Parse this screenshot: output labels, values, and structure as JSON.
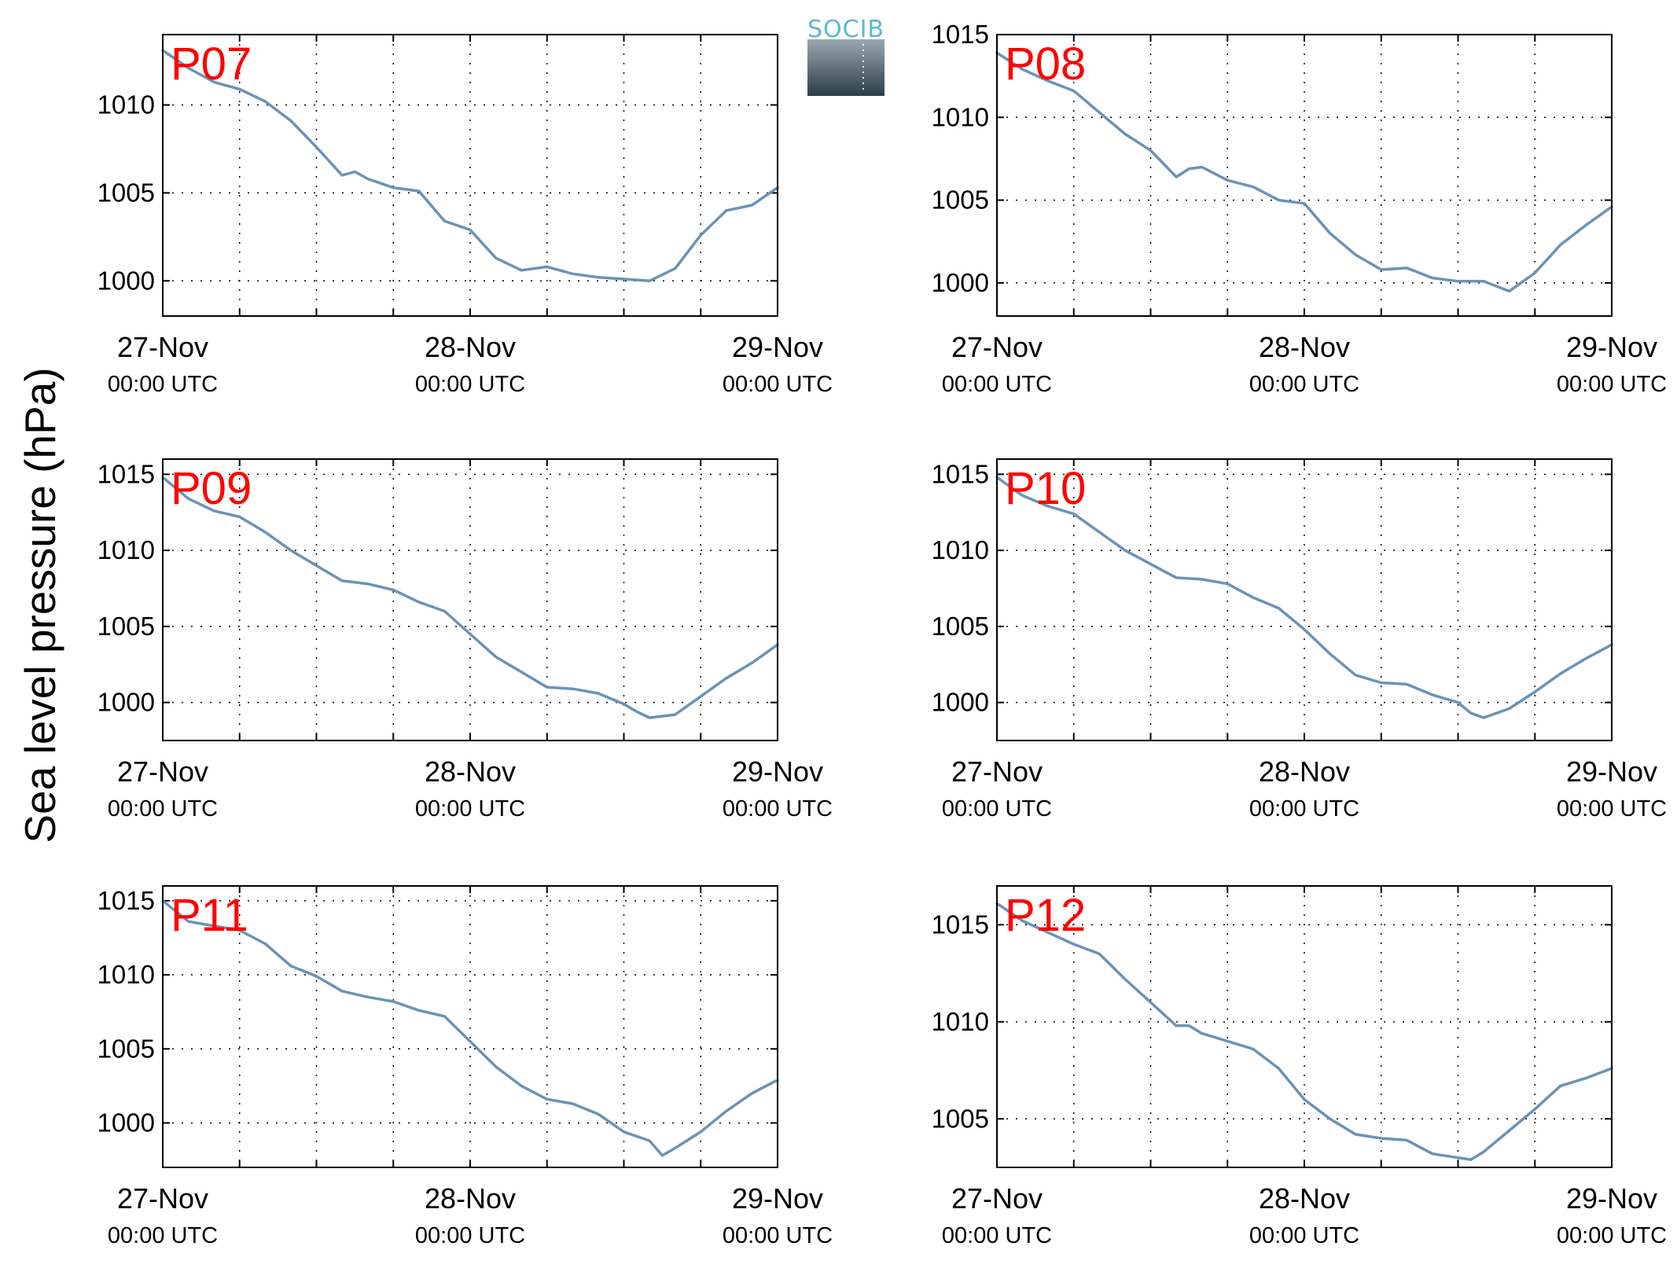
{
  "figure": {
    "ylabel": "Sea level pressure (hPa)",
    "line_color": "#6a93b6",
    "label_color": "#ff0000",
    "logo_text": "SOCIB",
    "logo_color": "#5bb8cf"
  },
  "chart_data": [
    {
      "type": "line",
      "title": "P07",
      "ylim": [
        998,
        1014
      ],
      "yticks": [
        1000,
        1005,
        1010
      ],
      "xlim": [
        0,
        48
      ],
      "xticks": [
        0,
        24,
        48
      ],
      "xtick_labels": [
        [
          "27-Nov",
          "00:00 UTC"
        ],
        [
          "28-Nov",
          "00:00 UTC"
        ],
        [
          "29-Nov",
          "00:00 UTC"
        ]
      ],
      "grid": true,
      "x": [
        0,
        2,
        4,
        6,
        8,
        10,
        12,
        14,
        15,
        16,
        18,
        20,
        22,
        24,
        26,
        28,
        30,
        32,
        34,
        36,
        38,
        40,
        42,
        44,
        46,
        48
      ],
      "series": [
        {
          "values": [
            1013.1,
            1012.1,
            1011.3,
            1010.9,
            1010.2,
            1009.1,
            1007.6,
            1006.0,
            1006.2,
            1005.8,
            1005.3,
            1005.1,
            1003.4,
            1002.9,
            1001.3,
            1000.6,
            1000.8,
            1000.4,
            1000.2,
            1000.1,
            1000.0,
            1000.7,
            1002.6,
            1004.0,
            1004.3,
            1005.3
          ]
        }
      ]
    },
    {
      "type": "line",
      "title": "P08",
      "ylim": [
        998,
        1015
      ],
      "yticks": [
        1000,
        1005,
        1010,
        1015
      ],
      "xlim": [
        0,
        48
      ],
      "xticks": [
        0,
        24,
        48
      ],
      "xtick_labels": [
        [
          "27-Nov",
          "00:00 UTC"
        ],
        [
          "28-Nov",
          "00:00 UTC"
        ],
        [
          "29-Nov",
          "00:00 UTC"
        ]
      ],
      "grid": true,
      "x": [
        0,
        2,
        4,
        6,
        8,
        10,
        12,
        14,
        15,
        16,
        18,
        20,
        22,
        24,
        26,
        28,
        30,
        32,
        34,
        36,
        38,
        40,
        42,
        44,
        46,
        48
      ],
      "series": [
        {
          "values": [
            1013.9,
            1012.9,
            1012.2,
            1011.6,
            1010.3,
            1009.0,
            1008.0,
            1006.4,
            1006.9,
            1007.0,
            1006.2,
            1005.8,
            1005.0,
            1004.8,
            1003.0,
            1001.7,
            1000.8,
            1000.9,
            1000.3,
            1000.1,
            1000.1,
            999.5,
            1000.6,
            1002.3,
            1003.5,
            1004.6
          ]
        }
      ]
    },
    {
      "type": "line",
      "title": "P09",
      "ylim": [
        997.5,
        1016
      ],
      "yticks": [
        1000,
        1005,
        1010,
        1015
      ],
      "xlim": [
        0,
        48
      ],
      "xticks": [
        0,
        24,
        48
      ],
      "xtick_labels": [
        [
          "27-Nov",
          "00:00 UTC"
        ],
        [
          "28-Nov",
          "00:00 UTC"
        ],
        [
          "29-Nov",
          "00:00 UTC"
        ]
      ],
      "grid": true,
      "x": [
        0,
        2,
        4,
        6,
        8,
        10,
        12,
        14,
        16,
        18,
        20,
        22,
        24,
        26,
        28,
        30,
        32,
        34,
        36,
        37,
        38,
        40,
        42,
        44,
        46,
        48
      ],
      "series": [
        {
          "values": [
            1014.8,
            1013.4,
            1012.6,
            1012.2,
            1011.2,
            1010.0,
            1009.0,
            1008.0,
            1007.8,
            1007.4,
            1006.6,
            1006.0,
            1004.5,
            1003.0,
            1002.0,
            1001.0,
            1000.9,
            1000.6,
            999.9,
            999.4,
            999.0,
            999.2,
            1000.4,
            1001.6,
            1002.6,
            1003.8
          ]
        }
      ]
    },
    {
      "type": "line",
      "title": "P10",
      "ylim": [
        997.5,
        1016
      ],
      "yticks": [
        1000,
        1005,
        1010,
        1015
      ],
      "xlim": [
        0,
        48
      ],
      "xticks": [
        0,
        24,
        48
      ],
      "xtick_labels": [
        [
          "27-Nov",
          "00:00 UTC"
        ],
        [
          "28-Nov",
          "00:00 UTC"
        ],
        [
          "29-Nov",
          "00:00 UTC"
        ]
      ],
      "grid": true,
      "x": [
        0,
        2,
        4,
        6,
        8,
        10,
        12,
        14,
        16,
        18,
        20,
        22,
        24,
        26,
        28,
        30,
        32,
        34,
        36,
        37,
        38,
        40,
        42,
        44,
        46,
        48
      ],
      "series": [
        {
          "values": [
            1014.8,
            1013.6,
            1012.9,
            1012.4,
            1011.2,
            1010.0,
            1009.1,
            1008.2,
            1008.1,
            1007.8,
            1006.9,
            1006.2,
            1004.8,
            1003.2,
            1001.8,
            1001.3,
            1001.2,
            1000.5,
            1000.0,
            999.3,
            999.0,
            999.6,
            1000.7,
            1001.9,
            1002.9,
            1003.8
          ]
        }
      ]
    },
    {
      "type": "line",
      "title": "P11",
      "ylim": [
        997,
        1016
      ],
      "yticks": [
        1000,
        1005,
        1010,
        1015
      ],
      "xlim": [
        0,
        48
      ],
      "xticks": [
        0,
        24,
        48
      ],
      "xtick_labels": [
        [
          "27-Nov",
          "00:00 UTC"
        ],
        [
          "28-Nov",
          "00:00 UTC"
        ],
        [
          "29-Nov",
          "00:00 UTC"
        ]
      ],
      "grid": true,
      "x": [
        0,
        2,
        4,
        6,
        8,
        10,
        12,
        14,
        16,
        18,
        20,
        22,
        24,
        26,
        28,
        30,
        32,
        34,
        36,
        38,
        39,
        40,
        42,
        44,
        46,
        48
      ],
      "series": [
        {
          "values": [
            1015.0,
            1013.6,
            1013.3,
            1013.0,
            1012.1,
            1010.6,
            1009.9,
            1008.9,
            1008.5,
            1008.2,
            1007.6,
            1007.2,
            1005.5,
            1003.8,
            1002.5,
            1001.6,
            1001.3,
            1000.6,
            999.4,
            998.8,
            997.8,
            998.3,
            999.4,
            1000.8,
            1002.0,
            1002.9
          ]
        }
      ]
    },
    {
      "type": "line",
      "title": "P12",
      "ylim": [
        1002.5,
        1017
      ],
      "yticks": [
        1005,
        1010,
        1015
      ],
      "xlim": [
        0,
        48
      ],
      "xticks": [
        0,
        24,
        48
      ],
      "xtick_labels": [
        [
          "27-Nov",
          "00:00 UTC"
        ],
        [
          "28-Nov",
          "00:00 UTC"
        ],
        [
          "29-Nov",
          "00:00 UTC"
        ]
      ],
      "grid": true,
      "x": [
        0,
        2,
        4,
        6,
        8,
        10,
        12,
        14,
        15,
        16,
        18,
        20,
        22,
        24,
        26,
        28,
        30,
        32,
        34,
        36,
        37,
        38,
        40,
        42,
        44,
        46,
        48
      ],
      "series": [
        {
          "values": [
            1016.1,
            1015.2,
            1014.6,
            1014.0,
            1013.5,
            1012.2,
            1011.0,
            1009.8,
            1009.8,
            1009.4,
            1009.0,
            1008.6,
            1007.6,
            1006.0,
            1005.0,
            1004.2,
            1004.0,
            1003.9,
            1003.2,
            1003.0,
            1002.9,
            1003.3,
            1004.4,
            1005.5,
            1006.7,
            1007.1,
            1007.6
          ]
        }
      ]
    }
  ]
}
